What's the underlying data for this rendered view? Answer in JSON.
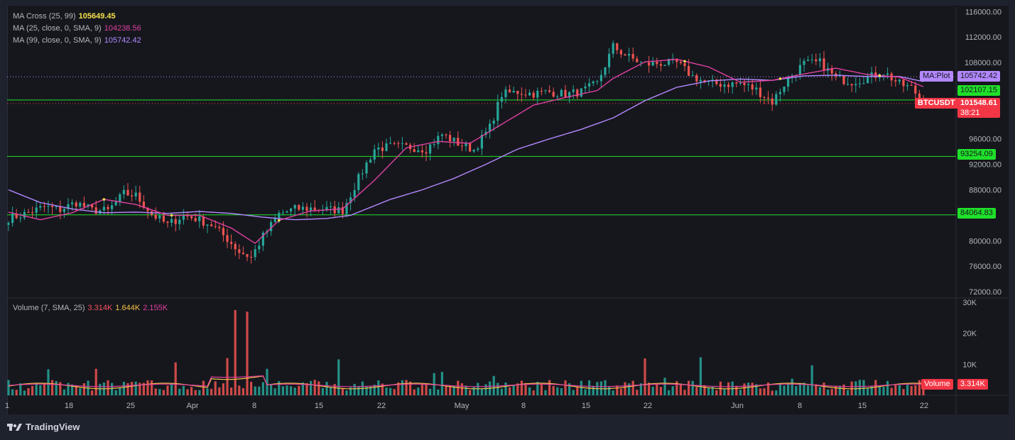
{
  "legend": {
    "ma_cross": {
      "label": "MA Cross (25, 99)",
      "value": "105649.45",
      "color": "#f5e14a"
    },
    "ma25": {
      "label": "MA (25, close, 0, SMA, 9)",
      "value": "104238.56",
      "color": "#e040a0"
    },
    "ma99": {
      "label": "MA (99, close, 0, SMA, 9)",
      "value": "105742.42",
      "color": "#b388ff"
    },
    "volume": {
      "label": "Volume (7, SMA, 25)",
      "v1": "3.314K",
      "v2": "1.644K",
      "v3": "2.155K",
      "c1": "#f7525f",
      "c2": "#f5c24a",
      "c3": "#e040a0"
    }
  },
  "price_tags": {
    "ma_plot_name": "MA:Plot",
    "ma_plot_value": "105742.42",
    "green_1": "102107.15",
    "symbol": "BTCUSDT",
    "last_price": "101548.61",
    "countdown": "38:21",
    "level_2": "93254.09",
    "level_3": "84064.83",
    "volume_name": "Volume",
    "volume_value": "3.314K"
  },
  "brand": {
    "name": "TradingView"
  },
  "chart_data": {
    "type": "candlestick",
    "symbol": "BTCUSDT",
    "x_ticks": [
      "1",
      "18",
      "25",
      "Apr",
      "8",
      "15",
      "22",
      "May",
      "8",
      "15",
      "22",
      "Jun",
      "8",
      "15",
      "22"
    ],
    "y_ticks": [
      "116000.00",
      "112000.00",
      "108000.00",
      "96000.00",
      "92000.00",
      "88000.00",
      "80000.00",
      "76000.00",
      "72000.00"
    ],
    "ylim": [
      71000,
      116700
    ],
    "volume_ticks": [
      "30K",
      "20K",
      "10K"
    ],
    "volume_ylim": [
      0,
      30000
    ],
    "horizontal_levels": [
      102107.15,
      93254.09,
      84064.83
    ],
    "ma_plot_level": 105742.42,
    "last_price_level": 101548.61,
    "close_anchors": [
      [
        0,
        83500
      ],
      [
        4,
        84200
      ],
      [
        9,
        85300
      ],
      [
        13,
        84900
      ],
      [
        17,
        86000
      ],
      [
        21,
        84800
      ],
      [
        25,
        84700
      ],
      [
        29,
        87400
      ],
      [
        32,
        87100
      ],
      [
        36,
        84200
      ],
      [
        40,
        82500
      ],
      [
        44,
        84000
      ],
      [
        47,
        83500
      ],
      [
        51,
        82500
      ],
      [
        55,
        80300
      ],
      [
        58,
        78300
      ],
      [
        61,
        77400
      ],
      [
        64,
        80700
      ],
      [
        68,
        84200
      ],
      [
        72,
        85000
      ],
      [
        76,
        85100
      ],
      [
        80,
        84900
      ],
      [
        84,
        84800
      ],
      [
        88,
        89800
      ],
      [
        92,
        94400
      ],
      [
        96,
        94800
      ],
      [
        101,
        94700
      ],
      [
        105,
        94400
      ],
      [
        109,
        96700
      ],
      [
        113,
        95300
      ],
      [
        117,
        94300
      ],
      [
        121,
        97800
      ],
      [
        124,
        103000
      ],
      [
        128,
        103400
      ],
      [
        132,
        103100
      ],
      [
        136,
        103400
      ],
      [
        140,
        103000
      ],
      [
        144,
        103400
      ],
      [
        148,
        104700
      ],
      [
        152,
        110500
      ],
      [
        156,
        108800
      ],
      [
        160,
        107700
      ],
      [
        164,
        107900
      ],
      [
        168,
        107900
      ],
      [
        172,
        105800
      ],
      [
        176,
        104700
      ],
      [
        180,
        104600
      ],
      [
        184,
        104700
      ],
      [
        188,
        103700
      ],
      [
        192,
        101800
      ],
      [
        196,
        105500
      ],
      [
        200,
        107800
      ],
      [
        204,
        108000
      ],
      [
        208,
        105500
      ],
      [
        212,
        105000
      ],
      [
        216,
        105600
      ],
      [
        220,
        106500
      ],
      [
        224,
        104600
      ],
      [
        227,
        104000
      ],
      [
        230,
        101800
      ]
    ],
    "ma25_anchors": [
      [
        0,
        84500
      ],
      [
        8,
        83300
      ],
      [
        16,
        84400
      ],
      [
        24,
        86500
      ],
      [
        32,
        85700
      ],
      [
        40,
        84000
      ],
      [
        48,
        84000
      ],
      [
        56,
        82000
      ],
      [
        62,
        79600
      ],
      [
        68,
        83200
      ],
      [
        76,
        84700
      ],
      [
        84,
        85000
      ],
      [
        92,
        89500
      ],
      [
        100,
        94600
      ],
      [
        108,
        95600
      ],
      [
        116,
        95300
      ],
      [
        124,
        98300
      ],
      [
        132,
        101300
      ],
      [
        140,
        102500
      ],
      [
        148,
        103600
      ],
      [
        152,
        105500
      ],
      [
        160,
        108100
      ],
      [
        168,
        108500
      ],
      [
        176,
        107300
      ],
      [
        184,
        104900
      ],
      [
        192,
        105200
      ],
      [
        200,
        106200
      ],
      [
        208,
        107100
      ],
      [
        216,
        106100
      ],
      [
        224,
        105700
      ],
      [
        230,
        104200
      ]
    ],
    "ma99_anchors": [
      [
        0,
        88000
      ],
      [
        8,
        86000
      ],
      [
        16,
        85000
      ],
      [
        24,
        84400
      ],
      [
        32,
        84500
      ],
      [
        40,
        84300
      ],
      [
        48,
        84600
      ],
      [
        56,
        84300
      ],
      [
        64,
        83700
      ],
      [
        72,
        83300
      ],
      [
        80,
        83500
      ],
      [
        86,
        84000
      ],
      [
        96,
        86500
      ],
      [
        104,
        88000
      ],
      [
        112,
        89800
      ],
      [
        120,
        92000
      ],
      [
        128,
        94400
      ],
      [
        136,
        96000
      ],
      [
        144,
        97500
      ],
      [
        152,
        99300
      ],
      [
        160,
        102000
      ],
      [
        168,
        104100
      ],
      [
        176,
        105100
      ],
      [
        184,
        105400
      ],
      [
        192,
        105200
      ],
      [
        200,
        105900
      ],
      [
        208,
        106000
      ],
      [
        216,
        105800
      ],
      [
        224,
        105800
      ],
      [
        230,
        105000
      ]
    ]
  }
}
